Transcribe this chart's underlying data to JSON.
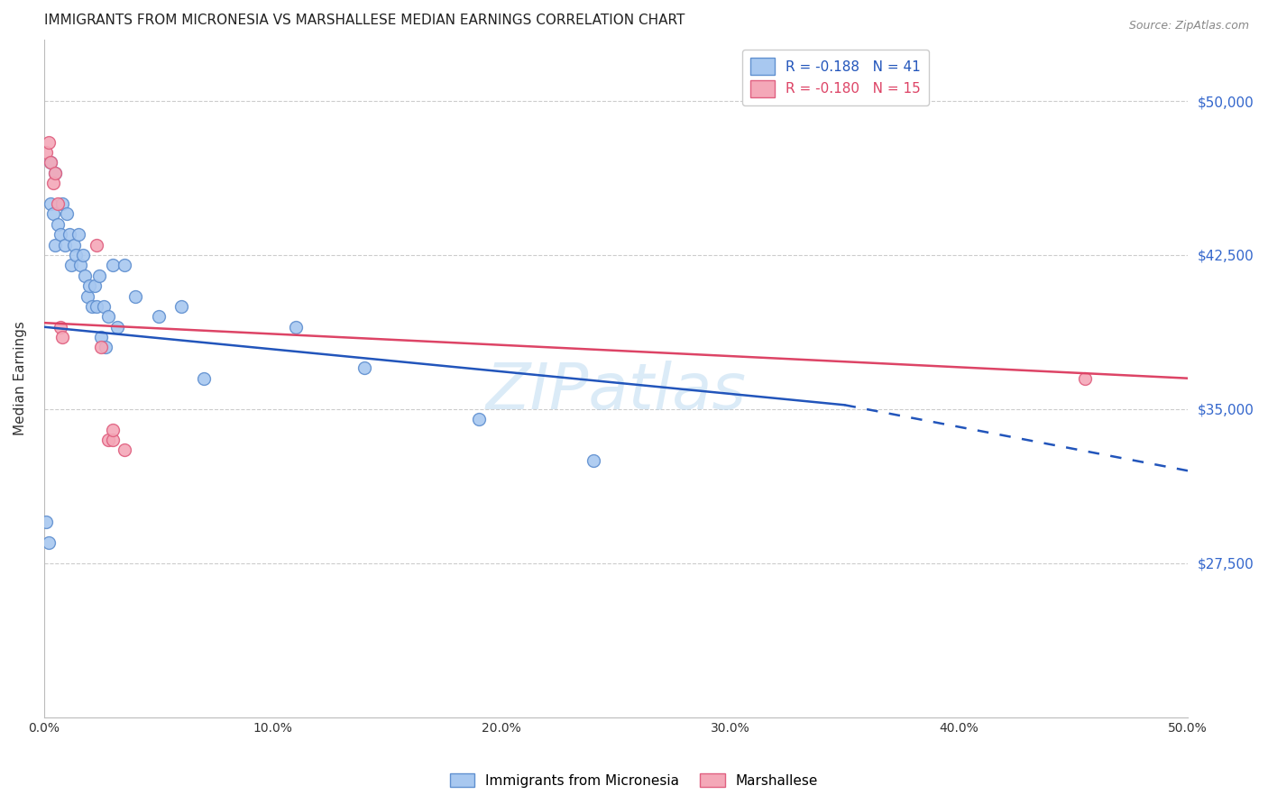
{
  "title": "IMMIGRANTS FROM MICRONESIA VS MARSHALLESE MEDIAN EARNINGS CORRELATION CHART",
  "source_text": "Source: ZipAtlas.com",
  "ylabel": "Median Earnings",
  "xlim": [
    0.0,
    0.5
  ],
  "ylim": [
    20000,
    53000
  ],
  "xtick_labels": [
    "0.0%",
    "10.0%",
    "20.0%",
    "30.0%",
    "40.0%",
    "50.0%"
  ],
  "xtick_vals": [
    0.0,
    0.1,
    0.2,
    0.3,
    0.4,
    0.5
  ],
  "ytick_labels": [
    "$27,500",
    "$35,000",
    "$42,500",
    "$50,000"
  ],
  "ytick_vals": [
    27500,
    35000,
    42500,
    50000
  ],
  "blue_color": "#A8C8F0",
  "pink_color": "#F4A8B8",
  "blue_edge": "#6090D0",
  "pink_edge": "#E06080",
  "blue_line_color": "#2255BB",
  "pink_line_color": "#DD4466",
  "legend_R_blue": "R = -0.188",
  "legend_N_blue": "N = 41",
  "legend_R_pink": "R = -0.180",
  "legend_N_pink": "N = 15",
  "legend_label_blue": "Immigrants from Micronesia",
  "legend_label_pink": "Marshallese",
  "watermark": "ZIPatlas",
  "blue_x": [
    0.001,
    0.002,
    0.003,
    0.003,
    0.004,
    0.005,
    0.005,
    0.006,
    0.007,
    0.008,
    0.009,
    0.01,
    0.011,
    0.012,
    0.013,
    0.014,
    0.015,
    0.016,
    0.017,
    0.018,
    0.019,
    0.02,
    0.021,
    0.022,
    0.023,
    0.024,
    0.025,
    0.026,
    0.027,
    0.028,
    0.03,
    0.032,
    0.035,
    0.04,
    0.05,
    0.06,
    0.07,
    0.11,
    0.14,
    0.19,
    0.24
  ],
  "blue_y": [
    29500,
    28500,
    47000,
    45000,
    44500,
    43000,
    46500,
    44000,
    43500,
    45000,
    43000,
    44500,
    43500,
    42000,
    43000,
    42500,
    43500,
    42000,
    42500,
    41500,
    40500,
    41000,
    40000,
    41000,
    40000,
    41500,
    38500,
    40000,
    38000,
    39500,
    42000,
    39000,
    42000,
    40500,
    39500,
    40000,
    36500,
    39000,
    37000,
    34500,
    32500
  ],
  "pink_x": [
    0.001,
    0.002,
    0.003,
    0.004,
    0.005,
    0.006,
    0.007,
    0.008,
    0.023,
    0.025,
    0.028,
    0.03,
    0.03,
    0.035,
    0.455
  ],
  "pink_y": [
    47500,
    48000,
    47000,
    46000,
    46500,
    45000,
    39000,
    38500,
    43000,
    38000,
    33500,
    33500,
    34000,
    33000,
    36500
  ],
  "grid_color": "#CCCCCC",
  "right_axis_color": "#3366CC",
  "title_fontsize": 11,
  "marker_size": 100
}
